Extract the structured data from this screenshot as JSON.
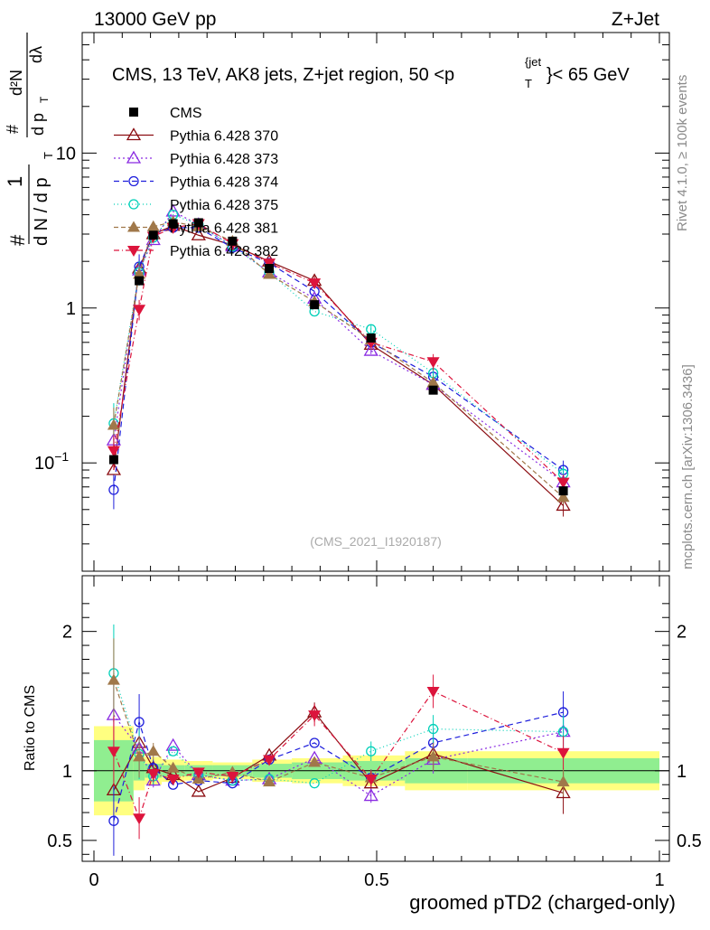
{
  "header": {
    "left": "13000 GeV pp",
    "right": "Z+Jet"
  },
  "side": {
    "rivet": "Rivet 4.1.0, ≥ 100k events",
    "mcplots": "mcplots.cern.ch [arXiv:1306.3436]"
  },
  "chart_data": {
    "type": "line",
    "title": "CMS, 13 TeV, AK8 jets, Z+jet region, 50 <p_T^{jet}< 65 GeV",
    "title_main": "CMS, 13 TeV, AK8 jets, Z+jet region, 50 <p",
    "title_sup": "{jet",
    "title_sub": "T",
    "title_tail": "}< 65 GeV",
    "watermark": "(CMS_2021_I1920187)",
    "xlabel": "groomed pTD2 (charged-only)",
    "ylabel_top": {
      "hash1": "#",
      "num": "1",
      "den": "d N / d p",
      "den_sub": "T",
      "hash2": "#",
      "num2": "d²N",
      "den2": "d p",
      "den2_sub": "T",
      "den2_tail": "dλ"
    },
    "ylabel_bottom": "Ratio to CMS",
    "xlim": [
      0,
      1
    ],
    "ylim_top": [
      0.02,
      60
    ],
    "yscale_top": "log",
    "ylim_bottom": [
      0.35,
      2.4
    ],
    "xticks": [
      {
        "v": 0,
        "label": "0"
      },
      {
        "v": 0.5,
        "label": "0.5"
      },
      {
        "v": 1,
        "label": "1"
      }
    ],
    "yticks_top": [
      {
        "v": 0.1,
        "base": "10",
        "exp": "−1"
      },
      {
        "v": 1,
        "base": "1",
        "exp": ""
      },
      {
        "v": 10,
        "base": "10",
        "exp": ""
      }
    ],
    "yticks_bottom": [
      {
        "v": 0.5,
        "label": "0.5"
      },
      {
        "v": 1,
        "label": "1"
      },
      {
        "v": 2,
        "label": "2"
      }
    ],
    "legend_position": "top-left",
    "x": [
      0.035,
      0.08,
      0.105,
      0.14,
      0.185,
      0.245,
      0.31,
      0.39,
      0.49,
      0.6,
      0.83
    ],
    "x_edges": [
      0.0,
      0.07,
      0.09,
      0.12,
      0.16,
      0.21,
      0.28,
      0.35,
      0.44,
      0.55,
      0.66,
      1.0
    ],
    "data": {
      "name": "CMS",
      "values": [
        0.105,
        1.5,
        2.95,
        3.5,
        3.55,
        2.7,
        1.8,
        1.05,
        0.64,
        0.295,
        0.066
      ],
      "band_stat": [
        0.22,
        0.07,
        0.05,
        0.04,
        0.04,
        0.04,
        0.05,
        0.06,
        0.07,
        0.09,
        0.09
      ],
      "band_tot": [
        0.32,
        0.14,
        0.1,
        0.08,
        0.07,
        0.06,
        0.08,
        0.09,
        0.11,
        0.14,
        0.14
      ]
    },
    "series": [
      {
        "name": "Pythia 6.428 370",
        "color": "#8b0d12",
        "dash": "",
        "marker": "tri-up-open",
        "values": [
          0.09,
          1.8,
          3.0,
          3.4,
          2.95,
          2.55,
          2.0,
          1.5,
          0.58,
          0.32,
          0.053
        ],
        "ratio": [
          0.86,
          1.2,
          1.02,
          0.97,
          0.85,
          0.95,
          1.11,
          1.42,
          0.91,
          1.12,
          0.84
        ],
        "err": [
          0,
          0,
          0,
          0,
          0,
          0,
          0,
          0.07,
          0.06,
          0.1,
          0.15
        ]
      },
      {
        "name": "Pythia 6.428 373",
        "color": "#8a2be2",
        "dash": "2,3",
        "marker": "tri-up-open",
        "values": [
          0.14,
          1.75,
          2.75,
          4.2,
          3.45,
          2.5,
          1.7,
          1.15,
          0.53,
          0.32,
          0.075
        ],
        "ratio": [
          1.4,
          1.16,
          0.93,
          1.18,
          0.97,
          0.93,
          0.94,
          1.09,
          0.82,
          1.08,
          1.28
        ],
        "err": [
          0.25,
          0.18,
          0.05,
          0,
          0,
          0,
          0,
          0,
          0.05,
          0.1,
          0.12
        ]
      },
      {
        "name": "Pythia 6.428 374",
        "color": "#1f1fdc",
        "dash": "6,4",
        "marker": "circle-open",
        "values": [
          0.067,
          1.85,
          3.0,
          3.3,
          3.3,
          2.45,
          1.95,
          1.28,
          0.6,
          0.36,
          0.09
        ],
        "ratio": [
          0.64,
          1.35,
          1.02,
          0.9,
          0.93,
          0.91,
          1.08,
          1.2,
          0.95,
          1.2,
          1.42
        ],
        "err": [
          0.25,
          0.2,
          0.06,
          0,
          0,
          0,
          0,
          0,
          0.06,
          0.1,
          0.15
        ]
      },
      {
        "name": "Pythia 6.428 375",
        "color": "#00d0b8",
        "dash": "1,3",
        "marker": "circle-open",
        "values": [
          0.18,
          1.7,
          2.85,
          4.0,
          3.45,
          2.5,
          1.7,
          0.95,
          0.73,
          0.38,
          0.085
        ],
        "ratio": [
          1.7,
          1.12,
          0.96,
          1.14,
          0.97,
          0.93,
          0.94,
          0.91,
          1.14,
          1.3,
          1.28
        ],
        "err": [
          0.35,
          0.18,
          0.06,
          0,
          0,
          0,
          0,
          0,
          0.07,
          0.1,
          0.12
        ]
      },
      {
        "name": "Pythia 6.428 381",
        "color": "#a0784a",
        "dash": "5,3",
        "marker": "tri-up-filled",
        "values": [
          0.175,
          1.65,
          3.35,
          3.6,
          3.35,
          2.7,
          1.65,
          1.1,
          0.62,
          0.33,
          0.06
        ],
        "ratio": [
          1.65,
          1.1,
          1.14,
          1.02,
          0.94,
          0.99,
          0.92,
          1.06,
          0.95,
          1.1,
          0.92
        ],
        "err": [
          0.3,
          0.15,
          0.06,
          0,
          0,
          0,
          0,
          0,
          0.06,
          0.1,
          0.1
        ]
      },
      {
        "name": "Pythia 6.428 382",
        "color": "#dc143c",
        "dash": "6,3,1,3",
        "marker": "tri-down-filled",
        "values": [
          0.12,
          0.98,
          2.9,
          3.3,
          3.5,
          2.6,
          1.95,
          1.45,
          0.6,
          0.45,
          0.075
        ],
        "ratio": [
          1.14,
          0.66,
          0.98,
          0.94,
          0.99,
          0.96,
          1.08,
          1.4,
          0.94,
          1.57,
          1.13
        ],
        "err": [
          0.25,
          0.15,
          0.06,
          0,
          0,
          0,
          0,
          0.08,
          0.06,
          0.12,
          0.12
        ]
      }
    ]
  }
}
